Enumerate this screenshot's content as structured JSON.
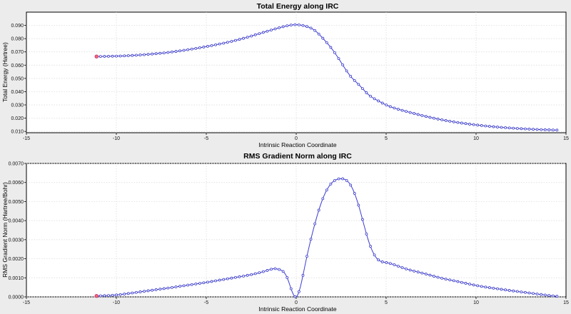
{
  "chart_data": [
    {
      "type": "line",
      "title": "Total Energy along IRC",
      "xlabel": "Intrinsic Reaction Coordinate",
      "ylabel": "Total Energy (Hartree)",
      "xlim": [
        -15,
        15
      ],
      "ylim": [
        0.009,
        0.1
      ],
      "xticks": [
        -15,
        -10,
        -5,
        0,
        5,
        10,
        15
      ],
      "xtick_labels": [
        "-15",
        "-10",
        "-5",
        "0",
        "5",
        "10",
        "15"
      ],
      "yticks": [
        0.01,
        0.02,
        0.03,
        0.04,
        0.05,
        0.06,
        0.07,
        0.08,
        0.09
      ],
      "ytick_labels": [
        "0.010",
        "0.020",
        "0.030",
        "0.040",
        "0.050",
        "0.060",
        "0.070",
        "0.080",
        "0.090"
      ],
      "grid": true,
      "highlight_point_x": -11.1,
      "series": [
        {
          "x": [
            -11.1,
            -10,
            -9,
            -8,
            -7,
            -6,
            -5,
            -4,
            -3,
            -2,
            -1,
            -0.3,
            0,
            0.5,
            1,
            1.5,
            2,
            2.5,
            3,
            3.5,
            4,
            4.5,
            5,
            6,
            7,
            8,
            9,
            10,
            11,
            12,
            13,
            14,
            14.5
          ],
          "values": [
            0.0665,
            0.0668,
            0.0674,
            0.0684,
            0.0698,
            0.0717,
            0.074,
            0.0767,
            0.08,
            0.084,
            0.088,
            0.0902,
            0.0905,
            0.0895,
            0.0865,
            0.08,
            0.072,
            0.062,
            0.052,
            0.045,
            0.038,
            0.0335,
            0.03,
            0.0255,
            0.022,
            0.019,
            0.0167,
            0.0149,
            0.0135,
            0.0125,
            0.0117,
            0.0112,
            0.011
          ]
        }
      ]
    },
    {
      "type": "line",
      "title": "RMS Gradient Norm along IRC",
      "xlabel": "Intrinsic Reaction Coordinate",
      "ylabel": "RMS Gradient Norm (Hartree/Bohr)",
      "xlim": [
        -15,
        15
      ],
      "ylim": [
        0,
        0.007
      ],
      "xticks": [
        -15,
        -10,
        -5,
        0,
        5,
        10,
        15
      ],
      "xtick_labels": [
        "-15",
        "-10",
        "-5",
        "0",
        "5",
        "10",
        "15"
      ],
      "yticks": [
        0,
        0.001,
        0.002,
        0.003,
        0.004,
        0.005,
        0.006,
        0.007
      ],
      "ytick_labels": [
        "0.0000",
        "0.0010",
        "0.0020",
        "0.0030",
        "0.0040",
        "0.0050",
        "0.0060",
        "0.0070"
      ],
      "grid": true,
      "highlight_point_x": -11.1,
      "series": [
        {
          "x": [
            -11.1,
            -10,
            -9,
            -8,
            -7,
            -6,
            -5,
            -4,
            -3,
            -2,
            -1.5,
            -1.2,
            -1,
            -0.5,
            0,
            0.5,
            1,
            1.5,
            2,
            2.5,
            3,
            3.5,
            4,
            4.5,
            5,
            6,
            7,
            8,
            9,
            10,
            11,
            12,
            13,
            14,
            14.5
          ],
          "values": [
            5e-05,
            0.0001,
            0.00022,
            0.00035,
            0.00048,
            0.00062,
            0.00076,
            0.00092,
            0.00108,
            0.00128,
            0.00142,
            0.00148,
            0.00145,
            0.001,
            0.0,
            0.0017,
            0.0037,
            0.0052,
            0.006,
            0.0062,
            0.0059,
            0.0047,
            0.003,
            0.002,
            0.0018,
            0.0015,
            0.00125,
            0.001,
            0.0008,
            0.0006,
            0.00045,
            0.00032,
            0.0002,
            8e-05,
            3e-05
          ]
        }
      ]
    }
  ]
}
